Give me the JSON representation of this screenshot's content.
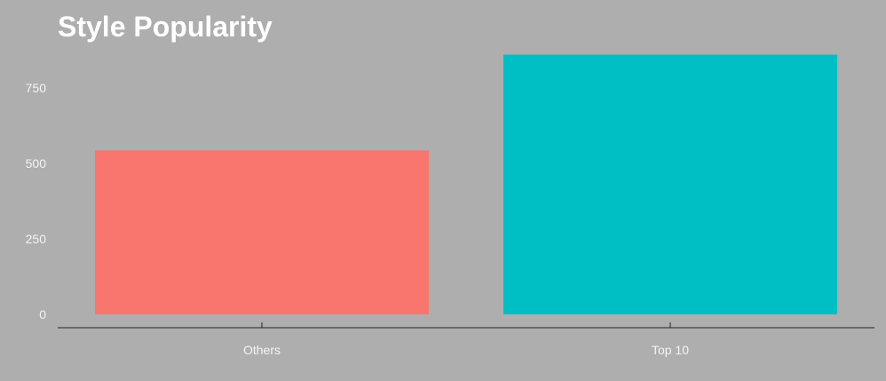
{
  "chart_data": {
    "type": "bar",
    "title": "Style Popularity",
    "xlabel": "",
    "ylabel": "",
    "categories": [
      "Others",
      "Top 10"
    ],
    "values": [
      543,
      860
    ],
    "colors": [
      "#f8766d",
      "#00bfc4"
    ],
    "ylim": [
      0,
      930
    ],
    "yticks": [
      0,
      250,
      500,
      750
    ],
    "ytick_labels": [
      "0",
      "250",
      "500",
      "750"
    ],
    "grid": false,
    "legend": "none",
    "background": "#aeaeae"
  }
}
